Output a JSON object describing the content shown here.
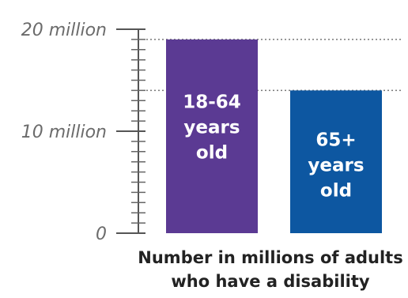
{
  "chart_data": {
    "type": "bar",
    "categories": [
      "18-64 years old",
      "65+ years old"
    ],
    "values": [
      19.0,
      14.0
    ],
    "bar_labels": [
      [
        "18-64",
        "years",
        "old"
      ],
      [
        "65+",
        "years",
        "old"
      ]
    ],
    "colors": [
      "#5b3a93",
      "#0d57a1"
    ],
    "ylim": [
      0,
      20
    ],
    "yticks": [
      {
        "value": 0,
        "label": "0"
      },
      {
        "value": 10,
        "label": "10 million"
      },
      {
        "value": 20,
        "label": "20 million"
      }
    ],
    "minor_tick_step": 1,
    "reference_lines": "dotted at bar tops",
    "xlabel_lines": [
      "Number in millions of adults",
      "who have a disability"
    ],
    "title": "",
    "ylabel": ""
  }
}
